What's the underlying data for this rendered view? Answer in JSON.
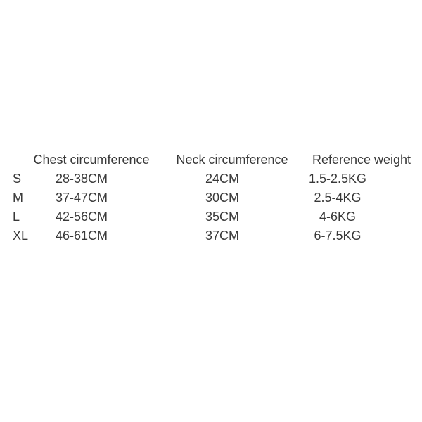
{
  "page": {
    "background_color": "#ffffff",
    "text_color": "#383838"
  },
  "chart_data": {
    "type": "table",
    "title": "",
    "columns": [
      "",
      "Chest circumference",
      "Neck circumference",
      "Reference weight"
    ],
    "rows": [
      [
        "S",
        "28-38CM",
        "24CM",
        "1.5-2.5KG"
      ],
      [
        "M",
        "37-47CM",
        "30CM",
        "2.5-4KG"
      ],
      [
        "L",
        "42-56CM",
        "35CM",
        "4-6KG"
      ],
      [
        "XL",
        "46-61CM",
        "37CM",
        "6-7.5KG"
      ]
    ],
    "layout": {
      "grid": "off",
      "borders": "none",
      "header_row": true,
      "units": {
        "chest": "CM",
        "neck": "CM",
        "weight": "KG"
      }
    }
  }
}
